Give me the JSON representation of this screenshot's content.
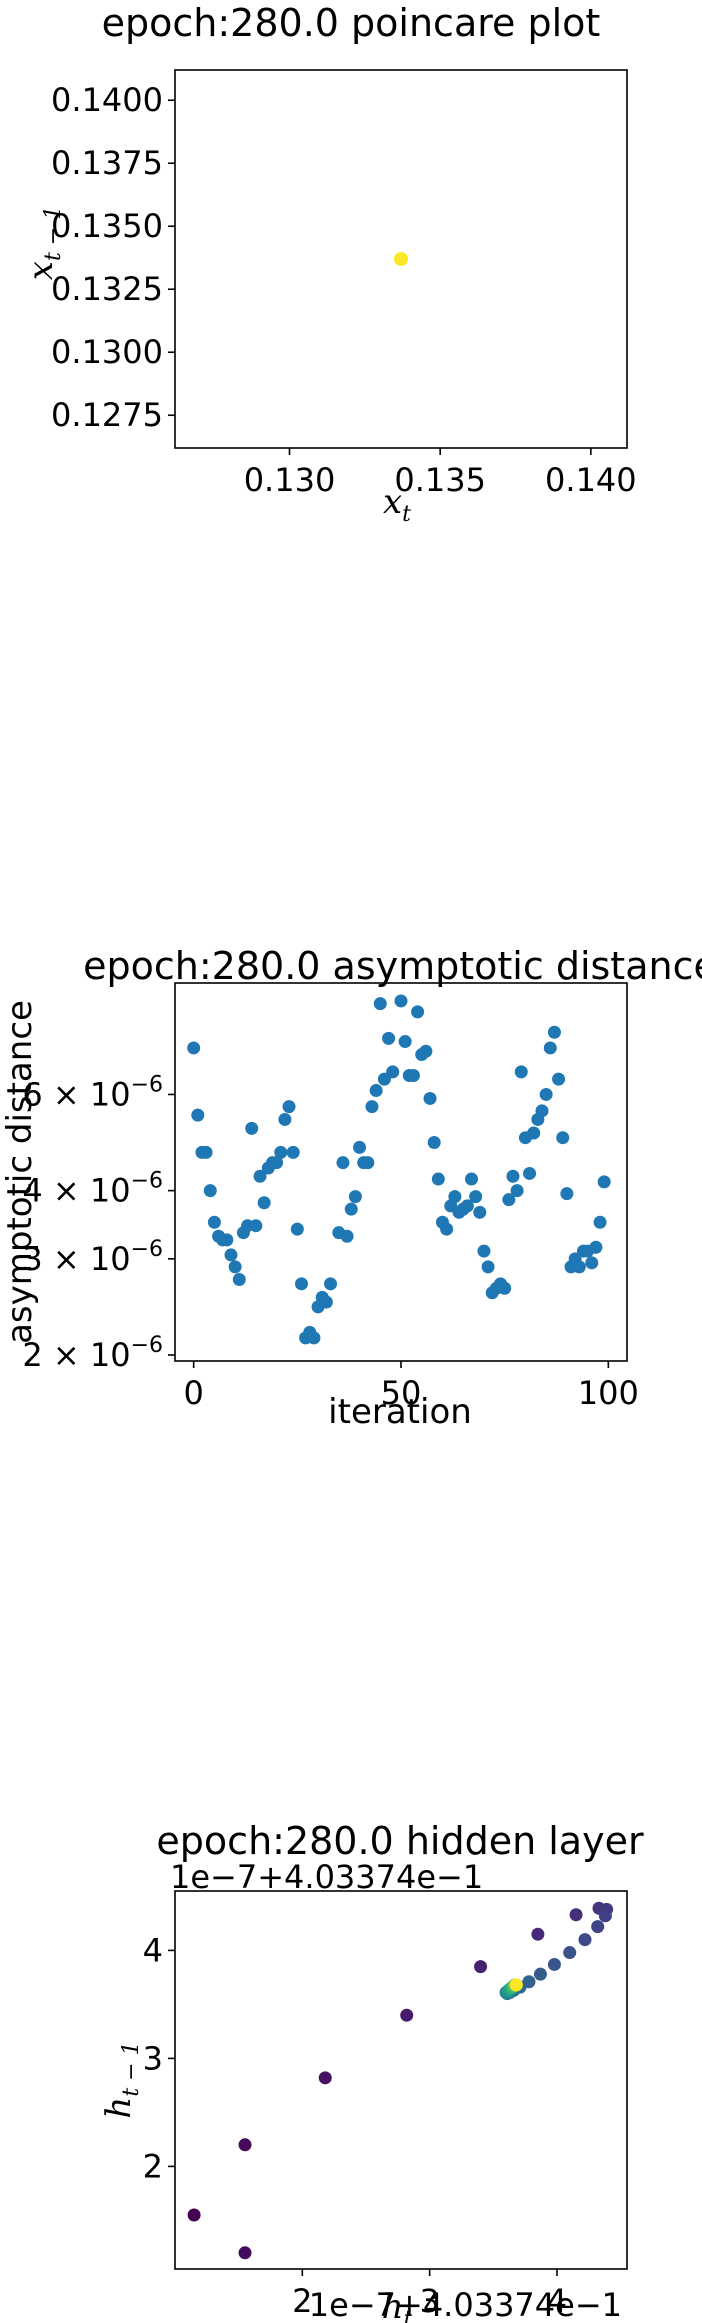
{
  "colors": {
    "c1_point": "#fde725",
    "c2_point": "#1f77b4",
    "viridis": [
      "#440154",
      "#482878",
      "#3e4989",
      "#31688e",
      "#26828e",
      "#1f9e89",
      "#35b779",
      "#6ece58",
      "#b5de2b",
      "#fde725"
    ]
  },
  "chart_data": [
    {
      "type": "scatter",
      "title": "epoch:280.0 poincare plot",
      "xlabel": {
        "base": "x",
        "sub": "t"
      },
      "ylabel": {
        "base": "x",
        "sub": "t − 1"
      },
      "xlim": [
        0.1262,
        0.1412
      ],
      "ylim": [
        0.1262,
        0.1412
      ],
      "xticks": [
        {
          "value": 0.13,
          "label": "0.130"
        },
        {
          "value": 0.135,
          "label": "0.135"
        },
        {
          "value": 0.14,
          "label": "0.140"
        }
      ],
      "yticks": [
        {
          "value": 0.1275,
          "label": "0.1275"
        },
        {
          "value": 0.13,
          "label": "0.1300"
        },
        {
          "value": 0.1325,
          "label": "0.1325"
        },
        {
          "value": 0.135,
          "label": "0.1350"
        },
        {
          "value": 0.1375,
          "label": "0.1375"
        },
        {
          "value": 0.14,
          "label": "0.1400"
        }
      ],
      "points": [
        {
          "x": 0.1337,
          "y": 0.1337
        }
      ]
    },
    {
      "type": "scatter",
      "title": "epoch:280.0 asymptotic distance",
      "xlabel": "iteration",
      "ylabel": "asymptotic distance",
      "yscale": "log",
      "xlim": [
        -4.5,
        104.5
      ],
      "ylim": [
        1.95e-06,
        9.6e-06
      ],
      "xticks": [
        {
          "value": 0,
          "label": "0"
        },
        {
          "value": 50,
          "label": "50"
        },
        {
          "value": 100,
          "label": "100"
        }
      ],
      "yticks": [
        {
          "value": 2e-06,
          "mant": "2",
          "exp": "−6"
        },
        {
          "value": 3e-06,
          "mant": "3",
          "exp": "−6"
        },
        {
          "value": 4e-06,
          "mant": "4",
          "exp": "−6"
        },
        {
          "value": 6e-06,
          "mant": "6",
          "exp": "−6"
        }
      ],
      "y": [
        7.3e-06,
        5.5e-06,
        4.7e-06,
        4.7e-06,
        4e-06,
        3.5e-06,
        3.3e-06,
        3.25e-06,
        3.25e-06,
        3.05e-06,
        2.9e-06,
        2.75e-06,
        3.35e-06,
        3.45e-06,
        5.2e-06,
        3.45e-06,
        4.25e-06,
        3.8e-06,
        4.4e-06,
        4.5e-06,
        4.5e-06,
        4.7e-06,
        5.4e-06,
        5.7e-06,
        4.7e-06,
        3.4e-06,
        2.7e-06,
        2.15e-06,
        2.2e-06,
        2.15e-06,
        2.45e-06,
        2.55e-06,
        2.5e-06,
        2.7e-06,
        3.35e-06,
        4.5e-06,
        3.3e-06,
        3.7e-06,
        3.9e-06,
        4.8e-06,
        4.5e-06,
        4.5e-06,
        5.7e-06,
        6.1e-06,
        8.8e-06,
        6.4e-06,
        7.6e-06,
        6.6e-06,
        8.9e-06,
        7.5e-06,
        6.5e-06,
        6.5e-06,
        8.5e-06,
        7.1e-06,
        7.2e-06,
        5.9e-06,
        4.9e-06,
        4.2e-06,
        3.5e-06,
        3.4e-06,
        3.75e-06,
        3.9e-06,
        3.65e-06,
        3.7e-06,
        3.75e-06,
        4.2e-06,
        3.9e-06,
        3.65e-06,
        3.1e-06,
        2.9e-06,
        2.6e-06,
        2.65e-06,
        2.7e-06,
        2.65e-06,
        3.85e-06,
        4.25e-06,
        4e-06,
        6.6e-06,
        5e-06,
        4.3e-06,
        5.1e-06,
        5.4e-06,
        5.6e-06,
        6e-06,
        7.3e-06,
        7.8e-06,
        6.4e-06,
        5e-06,
        3.95e-06,
        2.9e-06,
        3e-06,
        2.9e-06,
        3.1e-06,
        3.1e-06,
        2.95e-06,
        3.15e-06,
        3.5e-06,
        4.15e-06
      ],
      "x": [
        0,
        1,
        2,
        3,
        4,
        5,
        6,
        7,
        8,
        9,
        10,
        11,
        12,
        13,
        14,
        15,
        16,
        17,
        18,
        19,
        20,
        21,
        22,
        23,
        24,
        25,
        26,
        27,
        28,
        29,
        30,
        31,
        32,
        33,
        35,
        36,
        37,
        38,
        39,
        40,
        41,
        42,
        43,
        44,
        45,
        46,
        47,
        48,
        50,
        51,
        52,
        53,
        54,
        55,
        56,
        57,
        58,
        59,
        60,
        61,
        62,
        63,
        64,
        65,
        66,
        67,
        68,
        69,
        70,
        71,
        72,
        73,
        74,
        75,
        76,
        77,
        78,
        79,
        80,
        81,
        82,
        83,
        84,
        85,
        86,
        87,
        88,
        89,
        90,
        91,
        92,
        93,
        94,
        95,
        96,
        97,
        98,
        99
      ]
    },
    {
      "type": "scatter",
      "title": "epoch:280.0 hidden layer",
      "xlabel": {
        "base": "h",
        "sub": "t"
      },
      "ylabel": {
        "base": "h",
        "sub": "t − 1"
      },
      "x_offset_text": "1e−7+4.03374e−1",
      "y_offset_text": "1e−7+4.03374e−1",
      "xlim": [
        1.0,
        4.55
      ],
      "ylim": [
        1.05,
        4.55
      ],
      "xticks": [
        {
          "value": 2,
          "label": "2"
        },
        {
          "value": 3,
          "label": "3"
        },
        {
          "value": 4,
          "label": "4"
        }
      ],
      "yticks": [
        {
          "value": 2,
          "label": "2"
        },
        {
          "value": 3,
          "label": "3"
        },
        {
          "value": 4,
          "label": "4"
        }
      ],
      "points": [
        {
          "x": 1.15,
          "y": 1.55,
          "c": 0.0
        },
        {
          "x": 1.55,
          "y": 2.2,
          "c": 0.02
        },
        {
          "x": 1.55,
          "y": 1.2,
          "c": 0.03
        },
        {
          "x": 2.18,
          "y": 2.82,
          "c": 0.05
        },
        {
          "x": 2.82,
          "y": 3.4,
          "c": 0.07
        },
        {
          "x": 3.4,
          "y": 3.85,
          "c": 0.09
        },
        {
          "x": 3.85,
          "y": 4.15,
          "c": 0.11
        },
        {
          "x": 4.15,
          "y": 4.33,
          "c": 0.13
        },
        {
          "x": 4.33,
          "y": 4.39,
          "c": 0.15
        },
        {
          "x": 4.39,
          "y": 4.38,
          "c": 0.17
        },
        {
          "x": 4.38,
          "y": 4.32,
          "c": 0.19
        },
        {
          "x": 4.32,
          "y": 4.22,
          "c": 0.21
        },
        {
          "x": 4.22,
          "y": 4.1,
          "c": 0.23
        },
        {
          "x": 4.1,
          "y": 3.98,
          "c": 0.25
        },
        {
          "x": 3.98,
          "y": 3.87,
          "c": 0.27
        },
        {
          "x": 3.87,
          "y": 3.78,
          "c": 0.29
        },
        {
          "x": 3.78,
          "y": 3.71,
          "c": 0.31
        },
        {
          "x": 3.71,
          "y": 3.66,
          "c": 0.33
        },
        {
          "x": 3.66,
          "y": 3.63,
          "c": 0.35
        },
        {
          "x": 3.63,
          "y": 3.61,
          "c": 0.38
        },
        {
          "x": 3.61,
          "y": 3.6,
          "c": 0.41
        },
        {
          "x": 3.6,
          "y": 3.61,
          "c": 0.44
        },
        {
          "x": 3.61,
          "y": 3.62,
          "c": 0.48
        },
        {
          "x": 3.62,
          "y": 3.63,
          "c": 0.52
        },
        {
          "x": 3.63,
          "y": 3.64,
          "c": 0.56
        },
        {
          "x": 3.64,
          "y": 3.65,
          "c": 0.6
        },
        {
          "x": 3.65,
          "y": 3.66,
          "c": 0.65
        },
        {
          "x": 3.66,
          "y": 3.67,
          "c": 0.7
        },
        {
          "x": 3.67,
          "y": 3.68,
          "c": 0.76
        },
        {
          "x": 3.68,
          "y": 3.68,
          "c": 0.82
        },
        {
          "x": 3.68,
          "y": 3.68,
          "c": 0.9
        },
        {
          "x": 3.68,
          "y": 3.68,
          "c": 1.0
        }
      ]
    }
  ]
}
